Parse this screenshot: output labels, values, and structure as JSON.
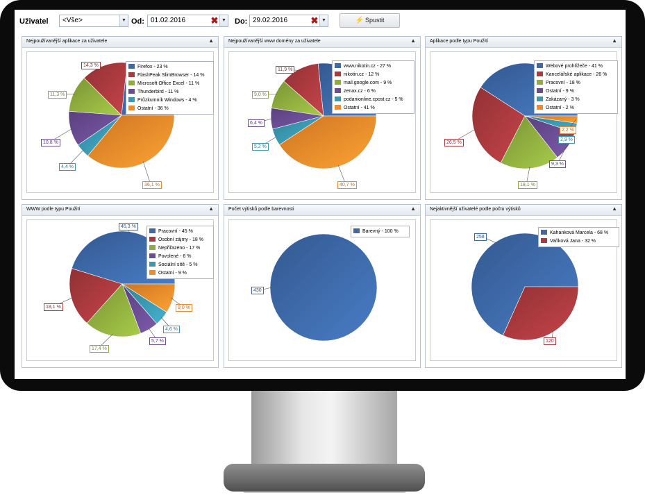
{
  "toolbar": {
    "user_label": "Uživatel",
    "user_value": "<Vše>",
    "from_label": "Od:",
    "from_value": "01.02.2016",
    "to_label": "Do:",
    "to_value": "29.02.2016",
    "run_label": "Spustit"
  },
  "colors": [
    "#3d69a8",
    "#a93a3e",
    "#8ead3e",
    "#6a4c93",
    "#3a98b0",
    "#f08a2a"
  ],
  "panels": [
    {
      "title": "Nejpoužívanější aplikace za uživatele",
      "chart_data": {
        "type": "pie",
        "legend": [
          "Firefox - 23 %",
          "FlashPeak SlimBrowser - 14 %",
          "Microsoft Office Excel - 11 %",
          "Thunderbird - 11 %",
          "Průzkumník Windows - 4 %",
          "Ostatní - 36 %"
        ],
        "values": [
          23.3,
          14.3,
          11.3,
          10.8,
          4.4,
          36.1
        ],
        "labels": [
          "",
          "14,3 %",
          "11,3 %",
          "10,8 %",
          "4,4 %",
          "36,1 %"
        ]
      }
    },
    {
      "title": "Nejpoužívanější www domény za uživatele",
      "chart_data": {
        "type": "pie",
        "legend": [
          "www.nikotin.cz - 27 %",
          "nikotin.cz - 12 %",
          "mail.google.com - 9 %",
          "zenax.cz - 6 %",
          "podanionline.cpost.cz - 5 %",
          "Ostatní - 41 %"
        ],
        "values": [
          26.6,
          11.9,
          9.0,
          6.4,
          5.2,
          40.7
        ],
        "labels": [
          "",
          "11,9 %",
          "9,0 %",
          "6,4 %",
          "5,2 %",
          "40,7 %"
        ]
      }
    },
    {
      "title": "Aplikace podle typu Použití",
      "chart_data": {
        "type": "pie",
        "legend": [
          "Webové prohlížeče - 41 %",
          "Kancelářské aplikace - 26 %",
          "Pracovní - 18 %",
          "Ostatní - 9 %",
          "Zakázaný - 3 %",
          "Ostatní - 2 %"
        ],
        "values": [
          40.8,
          26.5,
          18.1,
          9.3,
          2.9,
          2.2
        ],
        "labels": [
          "",
          "26,5 %",
          "18,1 %",
          "9,3 %",
          "2,9 %",
          "2,2 %"
        ]
      }
    },
    {
      "title": "WWW podle typu Použití",
      "chart_data": {
        "type": "pie",
        "legend": [
          "Pracovní - 45 %",
          "Osobní zájmy - 18 %",
          "Nepřiřazeno - 17 %",
          "Povolené - 6 %",
          "Sociální sítě - 5 %",
          "Ostatní - 9 %"
        ],
        "values": [
          45.3,
          18.1,
          17.4,
          5.7,
          4.6,
          9.0
        ],
        "labels": [
          "45,3 %",
          "18,1 %",
          "17,4 %",
          "5,7 %",
          "4,6 %",
          "9,0 %"
        ]
      }
    },
    {
      "title": "Počet výtisků podle barevnosti",
      "chart_data": {
        "type": "pie",
        "legend": [
          "Barevný - 100 %"
        ],
        "values": [
          430
        ],
        "labels": [
          "430"
        ]
      }
    },
    {
      "title": "Nejaktivnější uživatelé podle počtu výtisků",
      "chart_data": {
        "type": "pie",
        "legend": [
          "Kahanková Marcela - 68 %",
          "Vaňková Jana - 32 %"
        ],
        "values": [
          258,
          120
        ],
        "labels": [
          "258",
          "120"
        ]
      }
    }
  ]
}
